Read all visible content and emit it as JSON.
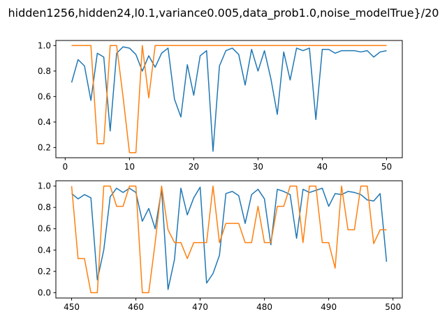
{
  "figure": {
    "title": "hidden1256,hidden24,l0.1,variance0.005,data_prob1.0,noise_modelTrue}/20"
  },
  "chart_data": [
    {
      "type": "line",
      "xlim": [
        -1.45,
        52.45
      ],
      "ylim": [
        0.12,
        1.04
      ],
      "xticks": [
        0,
        10,
        20,
        30,
        40,
        50
      ],
      "yticks": [
        0.2,
        0.4,
        0.6,
        0.8,
        1.0
      ],
      "grid": false,
      "series": [
        {
          "color": "#1f77b4",
          "x": [
            1,
            2,
            3,
            4,
            5,
            6,
            7,
            8,
            9,
            10,
            11,
            12,
            13,
            14,
            15,
            16,
            17,
            18,
            19,
            20,
            21,
            22,
            23,
            24,
            25,
            26,
            27,
            28,
            29,
            30,
            31,
            32,
            33,
            34,
            35,
            36,
            37,
            38,
            39,
            40,
            41,
            42,
            43,
            44,
            45,
            46,
            47,
            48,
            49,
            50
          ],
          "y": [
            0.71,
            0.89,
            0.84,
            0.57,
            0.94,
            0.91,
            0.33,
            0.94,
            0.99,
            0.98,
            0.93,
            0.8,
            0.92,
            0.83,
            0.94,
            0.98,
            0.58,
            0.44,
            0.85,
            0.61,
            0.92,
            0.96,
            0.17,
            0.84,
            0.96,
            0.98,
            0.93,
            0.69,
            0.97,
            0.8,
            0.96,
            0.74,
            0.46,
            0.95,
            0.73,
            0.98,
            0.96,
            0.98,
            0.42,
            0.97,
            0.97,
            0.94,
            0.96,
            0.96,
            0.96,
            0.95,
            0.96,
            0.91,
            0.95,
            0.96
          ]
        },
        {
          "color": "#ff7f0e",
          "x": [
            1,
            2,
            3,
            4,
            5,
            6,
            7,
            8,
            9,
            10,
            11,
            12,
            13,
            14,
            15,
            16,
            17,
            18,
            19,
            20,
            21,
            22,
            23,
            24,
            25,
            26,
            27,
            28,
            29,
            30,
            31,
            32,
            33,
            34,
            35,
            36,
            37,
            38,
            39,
            40,
            41,
            42,
            43,
            44,
            45,
            46,
            47,
            48,
            49,
            50
          ],
          "y": [
            1.0,
            1.0,
            1.0,
            1.0,
            0.23,
            0.23,
            1.0,
            1.0,
            0.6,
            0.16,
            0.16,
            1.0,
            0.59,
            1.0,
            1.0,
            1.0,
            1.0,
            1.0,
            1.0,
            1.0,
            1.0,
            1.0,
            1.0,
            1.0,
            1.0,
            1.0,
            1.0,
            1.0,
            1.0,
            1.0,
            1.0,
            1.0,
            1.0,
            1.0,
            1.0,
            1.0,
            1.0,
            1.0,
            1.0,
            1.0,
            1.0,
            1.0,
            1.0,
            1.0,
            1.0,
            1.0,
            1.0,
            1.0,
            1.0,
            1.0
          ]
        }
      ]
    },
    {
      "type": "line",
      "xlim": [
        447.55,
        501.45
      ],
      "ylim": [
        -0.05,
        1.05
      ],
      "xticks": [
        450,
        460,
        470,
        480,
        490,
        500
      ],
      "yticks": [
        0.0,
        0.2,
        0.4,
        0.6,
        0.8,
        1.0
      ],
      "grid": false,
      "series": [
        {
          "color": "#1f77b4",
          "x": [
            450,
            451,
            452,
            453,
            454,
            455,
            456,
            457,
            458,
            459,
            460,
            461,
            462,
            463,
            464,
            465,
            466,
            467,
            468,
            469,
            470,
            471,
            472,
            473,
            474,
            475,
            476,
            477,
            478,
            479,
            480,
            481,
            482,
            483,
            484,
            485,
            486,
            487,
            488,
            489,
            490,
            491,
            492,
            493,
            494,
            495,
            496,
            497,
            498,
            499
          ],
          "y": [
            0.93,
            0.88,
            0.92,
            0.89,
            0.12,
            0.4,
            0.9,
            0.98,
            0.94,
            0.98,
            0.94,
            0.67,
            0.79,
            0.6,
            0.97,
            0.03,
            0.31,
            0.98,
            0.73,
            0.89,
            0.99,
            0.09,
            0.18,
            0.35,
            0.93,
            0.95,
            0.91,
            0.65,
            0.92,
            0.97,
            0.88,
            0.45,
            0.97,
            0.95,
            0.92,
            0.51,
            0.97,
            0.94,
            0.96,
            0.98,
            0.81,
            0.93,
            0.92,
            0.95,
            0.94,
            0.92,
            0.87,
            0.86,
            0.93,
            0.29
          ]
        },
        {
          "color": "#ff7f0e",
          "x": [
            450,
            451,
            452,
            453,
            454,
            455,
            456,
            457,
            458,
            459,
            460,
            461,
            462,
            463,
            464,
            465,
            466,
            467,
            468,
            469,
            470,
            471,
            472,
            473,
            474,
            475,
            476,
            477,
            478,
            479,
            480,
            481,
            482,
            483,
            484,
            485,
            486,
            487,
            488,
            489,
            490,
            491,
            492,
            493,
            494,
            495,
            496,
            497,
            498,
            499
          ],
          "y": [
            1.0,
            0.32,
            0.32,
            0.0,
            0.0,
            1.0,
            1.0,
            0.81,
            0.81,
            1.0,
            1.0,
            0.0,
            0.0,
            0.47,
            1.0,
            0.59,
            0.47,
            0.47,
            0.32,
            0.47,
            0.47,
            0.47,
            1.0,
            0.47,
            0.65,
            0.65,
            0.65,
            0.47,
            0.47,
            0.81,
            0.47,
            0.47,
            0.81,
            0.81,
            1.0,
            1.0,
            0.47,
            1.0,
            1.0,
            0.47,
            0.47,
            0.23,
            1.0,
            0.59,
            0.59,
            1.0,
            1.0,
            0.46,
            0.59,
            0.59
          ]
        }
      ]
    }
  ]
}
